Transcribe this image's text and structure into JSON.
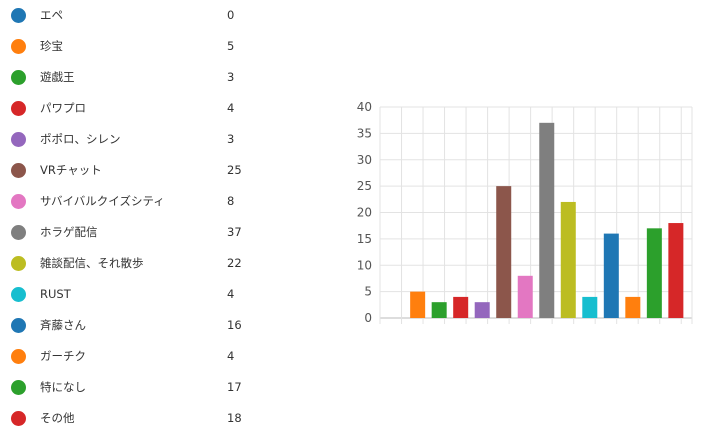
{
  "chart_data": {
    "type": "bar",
    "categories": [
      "エペ",
      "珍宝",
      "遊戯王",
      "パワプロ",
      "ポポロ、シレン",
      "VRチャット",
      "サバイバルクイズシティ",
      "ホラゲ配信",
      "雑談配信、それ散歩",
      "RUST",
      "斉藤さん",
      "ガーチク",
      "特になし",
      "その他"
    ],
    "values": [
      0,
      5,
      3,
      4,
      3,
      25,
      8,
      37,
      22,
      4,
      16,
      4,
      17,
      18
    ],
    "colors": [
      "#1f77b4",
      "#ff7f0e",
      "#2ca02c",
      "#d62728",
      "#9467bd",
      "#8c564b",
      "#e377c2",
      "#7f7f7f",
      "#bcbd22",
      "#17becf",
      "#1f77b4",
      "#ff7f0e",
      "#2ca02c",
      "#d62728"
    ],
    "title": "",
    "xlabel": "",
    "ylabel": "",
    "ylim": [
      0,
      40
    ],
    "yticks": [
      "0",
      "5",
      "10",
      "15",
      "20",
      "25",
      "30",
      "35",
      "40"
    ],
    "grid": true,
    "legend_position": "left"
  }
}
